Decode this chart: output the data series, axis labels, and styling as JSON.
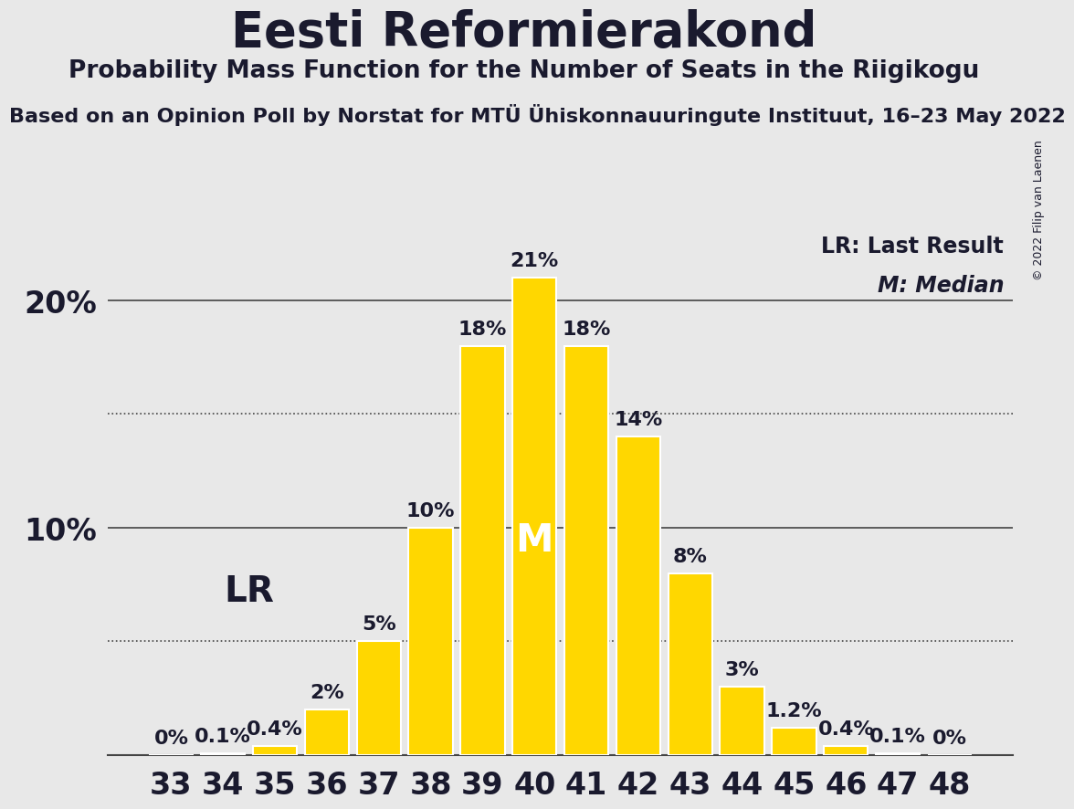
{
  "title": "Eesti Reformierakond",
  "subtitle": "Probability Mass Function for the Number of Seats in the Riigikogu",
  "source_line": "Based on an Opinion Poll by Norstat for MTÜ Ühiskonnauuringute Instituut, 16–23 May 2022",
  "copyright": "© 2022 Filip van Laenen",
  "categories": [
    33,
    34,
    35,
    36,
    37,
    38,
    39,
    40,
    41,
    42,
    43,
    44,
    45,
    46,
    47,
    48
  ],
  "values": [
    0.0,
    0.1,
    0.4,
    2.0,
    5.0,
    10.0,
    18.0,
    21.0,
    18.0,
    14.0,
    8.0,
    3.0,
    1.2,
    0.4,
    0.1,
    0.0
  ],
  "labels": [
    "0%",
    "0.1%",
    "0.4%",
    "2%",
    "5%",
    "10%",
    "18%",
    "21%",
    "18%",
    "14%",
    "8%",
    "3%",
    "1.2%",
    "0.4%",
    "0.1%",
    "0%"
  ],
  "bar_color": "#FFD700",
  "bar_edge_color": "#FFFFFF",
  "background_color": "#E8E8E8",
  "text_color": "#1a1a2e",
  "median_seat": 40,
  "last_result_seat": 34,
  "dotted_line_y": [
    5.0,
    15.0
  ],
  "solid_line_y": [
    10.0,
    20.0
  ],
  "ylim": [
    0,
    23
  ],
  "legend_lr": "LR: Last Result",
  "legend_m": "M: Median",
  "title_fontsize": 38,
  "subtitle_fontsize": 19,
  "source_fontsize": 16,
  "bar_label_fontsize": 16,
  "axis_tick_fontsize": 24,
  "ytick_fontsize": 24,
  "legend_fontsize": 17,
  "lr_label_fontsize": 28,
  "m_label_fontsize": 30
}
